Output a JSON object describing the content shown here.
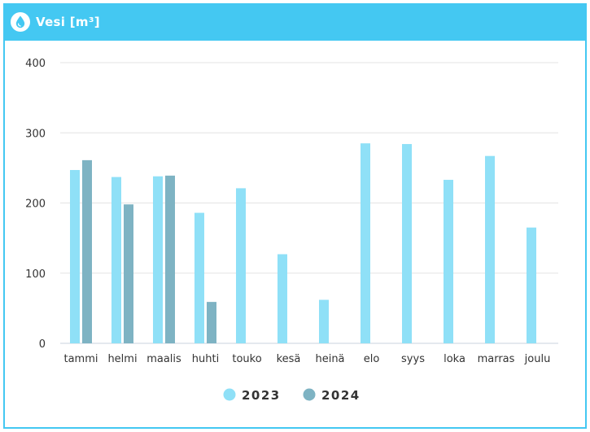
{
  "header": {
    "title": "Vesi [m³]",
    "icon": "water-drop-icon"
  },
  "colors": {
    "accent": "#44c8f2",
    "series_2023": "#8fe0f7",
    "series_2024": "#7eb3c3",
    "grid": "#e3e3e3"
  },
  "chart_data": {
    "type": "bar",
    "title": "Vesi [m³]",
    "xlabel": "",
    "ylabel": "",
    "ylim": [
      0,
      400
    ],
    "yticks": [
      0,
      100,
      200,
      300,
      400
    ],
    "grid": true,
    "legend_position": "bottom",
    "categories": [
      "tammi",
      "helmi",
      "maalis",
      "huhti",
      "touko",
      "kesä",
      "heinä",
      "elo",
      "syys",
      "loka",
      "marras",
      "joulu"
    ],
    "series": [
      {
        "name": "2023",
        "color": "#8fe0f7",
        "values": [
          247,
          237,
          238,
          186,
          221,
          127,
          62,
          285,
          284,
          233,
          267,
          165
        ]
      },
      {
        "name": "2024",
        "color": "#7eb3c3",
        "values": [
          261,
          198,
          239,
          59,
          null,
          null,
          null,
          null,
          null,
          null,
          null,
          null
        ]
      }
    ]
  }
}
